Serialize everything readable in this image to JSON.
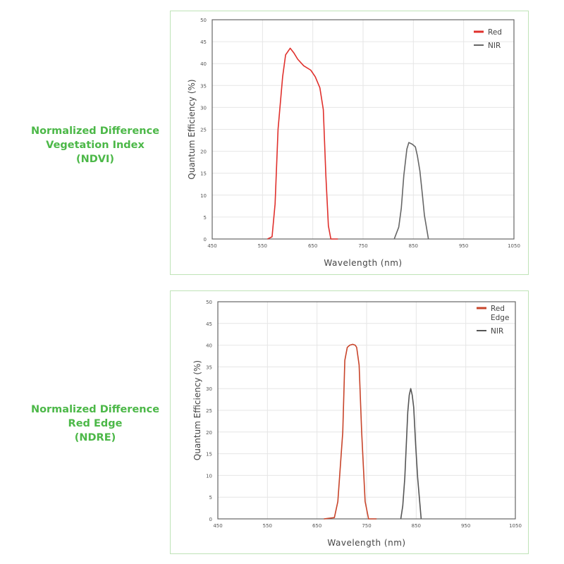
{
  "panels": [
    {
      "label_lines": [
        "Normalized Difference",
        "Vegetation Index",
        "(NDVI)"
      ]
    },
    {
      "label_lines": [
        "Normalized Difference",
        "Red Edge",
        "(NDRE)"
      ]
    }
  ],
  "chart_data": [
    {
      "type": "line",
      "title": "",
      "xlabel": "Wavelength (nm)",
      "ylabel": "Quantum Efficiency (%)",
      "xlim": [
        450,
        1050
      ],
      "ylim": [
        0,
        50
      ],
      "xticks": [
        450,
        550,
        650,
        750,
        850,
        950,
        1050
      ],
      "yticks": [
        0,
        5,
        10,
        15,
        20,
        25,
        30,
        35,
        40,
        45,
        50
      ],
      "grid": true,
      "legend_position": "top-right",
      "series": [
        {
          "name": "Red",
          "color": "#e0302c",
          "x": [
            560,
            569,
            575,
            581,
            590,
            596,
            605,
            612,
            620,
            632,
            646,
            655,
            664,
            671,
            676,
            681,
            686,
            700
          ],
          "y": [
            0,
            0.5,
            8,
            25,
            37,
            42,
            43.5,
            42.5,
            41,
            39.5,
            38.5,
            37,
            34.5,
            29.5,
            14.5,
            3,
            0,
            0
          ]
        },
        {
          "name": "NIR",
          "color": "#666666",
          "x": [
            812,
            821,
            826,
            831,
            837,
            841,
            848,
            854,
            858,
            863,
            868,
            872,
            880
          ],
          "y": [
            0,
            2.7,
            7,
            14.5,
            20.5,
            22,
            21.6,
            21,
            19,
            15.5,
            10,
            5.4,
            0
          ]
        }
      ]
    },
    {
      "type": "line",
      "title": "",
      "xlabel": "Wavelength (nm)",
      "ylabel": "Quantum Efficiency (%)",
      "xlim": [
        450,
        1050
      ],
      "ylim": [
        0,
        50
      ],
      "xticks": [
        450,
        550,
        650,
        750,
        850,
        950,
        1050
      ],
      "yticks": [
        0,
        5,
        10,
        15,
        20,
        25,
        30,
        35,
        40,
        45,
        50
      ],
      "grid": true,
      "legend_position": "top-right",
      "series": [
        {
          "name": "Red Edge",
          "color": "#c8442a",
          "x": [
            664,
            685,
            692,
            697,
            702,
            706,
            711,
            716,
            722,
            727,
            730,
            735,
            740,
            747,
            754,
            770
          ],
          "y": [
            0,
            0.3,
            4,
            12,
            20,
            36.5,
            39.5,
            40,
            40.2,
            40,
            39.5,
            35.4,
            20,
            4,
            0,
            0
          ]
        },
        {
          "name": "NIR",
          "color": "#555555",
          "x": [
            819,
            823,
            827,
            833,
            836,
            839,
            842,
            845,
            849,
            853,
            860
          ],
          "y": [
            0,
            3,
            9.5,
            24.6,
            28.5,
            30,
            28.5,
            25.7,
            17,
            9.5,
            0
          ]
        }
      ]
    }
  ]
}
